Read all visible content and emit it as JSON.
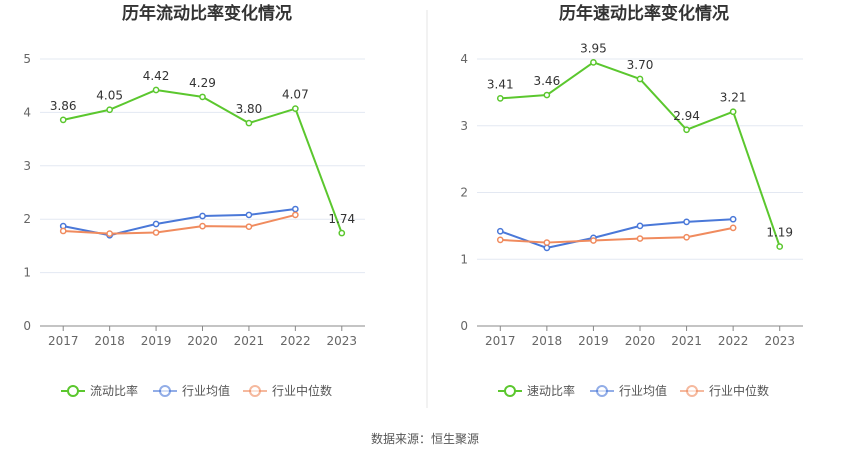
{
  "source": "数据来源：恒生聚源",
  "chart_data": [
    {
      "type": "line",
      "title": "历年流动比率变化情况",
      "categories": [
        "2017",
        "2018",
        "2019",
        "2020",
        "2021",
        "2022",
        "2023"
      ],
      "ylim": [
        0,
        5
      ],
      "yticks": [
        "0",
        "1",
        "2",
        "3",
        "4",
        "5"
      ],
      "grid": true,
      "legend_position": "bottom",
      "series": [
        {
          "name": "流动比率",
          "color": "#5bc72e",
          "values": [
            3.86,
            4.05,
            4.42,
            4.29,
            3.8,
            4.07,
            1.74
          ],
          "labels": [
            "3.86",
            "4.05",
            "4.42",
            "4.29",
            "3.80",
            "4.07",
            "1.74"
          ]
        },
        {
          "name": "行业均值",
          "color": "#4a78d8",
          "values": [
            1.87,
            1.7,
            1.91,
            2.06,
            2.08,
            2.19,
            null
          ]
        },
        {
          "name": "行业中位数",
          "color": "#f08b5e",
          "values": [
            1.78,
            1.73,
            1.75,
            1.87,
            1.86,
            2.08,
            null
          ]
        }
      ]
    },
    {
      "type": "line",
      "title": "历年速动比率变化情况",
      "categories": [
        "2017",
        "2018",
        "2019",
        "2020",
        "2021",
        "2022",
        "2023"
      ],
      "ylim": [
        0,
        4
      ],
      "yticks": [
        "0",
        "1",
        "2",
        "3",
        "4"
      ],
      "grid": true,
      "legend_position": "bottom",
      "series": [
        {
          "name": "速动比率",
          "color": "#5bc72e",
          "values": [
            3.41,
            3.46,
            3.95,
            3.7,
            2.94,
            3.21,
            1.19
          ],
          "labels": [
            "3.41",
            "3.46",
            "3.95",
            "3.70",
            "2.94",
            "3.21",
            "1.19"
          ]
        },
        {
          "name": "行业均值",
          "color": "#4a78d8",
          "values": [
            1.42,
            1.17,
            1.32,
            1.5,
            1.56,
            1.6,
            null
          ]
        },
        {
          "name": "行业中位数",
          "color": "#f08b5e",
          "values": [
            1.29,
            1.25,
            1.28,
            1.31,
            1.33,
            1.47,
            null
          ]
        }
      ]
    }
  ]
}
